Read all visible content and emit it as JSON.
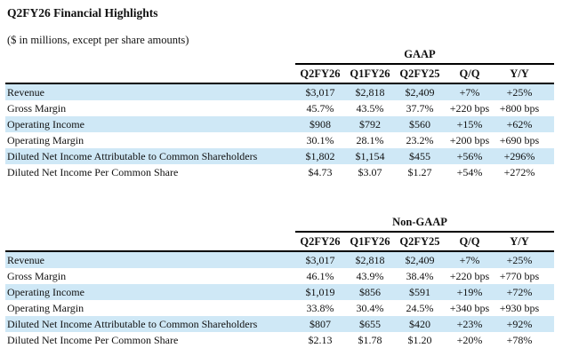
{
  "title": "Q2FY26 Financial Highlights",
  "subtitle": "($ in millions, except per share amounts)",
  "colors": {
    "row_highlight": "#cfe8f6",
    "rule": "#000000",
    "text": "#111111"
  },
  "tables": [
    {
      "group_header": "GAAP",
      "columns": [
        "Q2FY26",
        "Q1FY26",
        "Q2FY25",
        "Q/Q",
        "Y/Y"
      ],
      "rows": [
        {
          "label": "Revenue",
          "values": [
            "$3,017",
            "$2,818",
            "$2,409",
            "+7%",
            "+25%"
          ]
        },
        {
          "label": "Gross Margin",
          "values": [
            "45.7%",
            "43.5%",
            "37.7%",
            "+220 bps",
            "+800 bps"
          ]
        },
        {
          "label": "Operating Income",
          "values": [
            "$908",
            "$792",
            "$560",
            "+15%",
            "+62%"
          ]
        },
        {
          "label": "Operating Margin",
          "values": [
            "30.1%",
            "28.1%",
            "23.2%",
            "+200 bps",
            "+690 bps"
          ]
        },
        {
          "label": "Diluted Net Income Attributable to Common Shareholders",
          "values": [
            "$1,802",
            "$1,154",
            "$455",
            "+56%",
            "+296%"
          ]
        },
        {
          "label": "Diluted Net Income Per Common Share",
          "values": [
            "$4.73",
            "$3.07",
            "$1.27",
            "+54%",
            "+272%"
          ]
        }
      ]
    },
    {
      "group_header": "Non-GAAP",
      "columns": [
        "Q2FY26",
        "Q1FY26",
        "Q2FY25",
        "Q/Q",
        "Y/Y"
      ],
      "rows": [
        {
          "label": "Revenue",
          "values": [
            "$3,017",
            "$2,818",
            "$2,409",
            "+7%",
            "+25%"
          ]
        },
        {
          "label": "Gross Margin",
          "values": [
            "46.1%",
            "43.9%",
            "38.4%",
            "+220 bps",
            "+770 bps"
          ]
        },
        {
          "label": "Operating Income",
          "values": [
            "$1,019",
            "$856",
            "$591",
            "+19%",
            "+72%"
          ]
        },
        {
          "label": "Operating Margin",
          "values": [
            "33.8%",
            "30.4%",
            "24.5%",
            "+340 bps",
            "+930 bps"
          ]
        },
        {
          "label": "Diluted Net Income Attributable to Common Shareholders",
          "values": [
            "$807",
            "$655",
            "$420",
            "+23%",
            "+92%"
          ]
        },
        {
          "label": "Diluted Net Income Per Common Share",
          "values": [
            "$2.13",
            "$1.78",
            "$1.20",
            "+20%",
            "+78%"
          ]
        }
      ]
    }
  ]
}
